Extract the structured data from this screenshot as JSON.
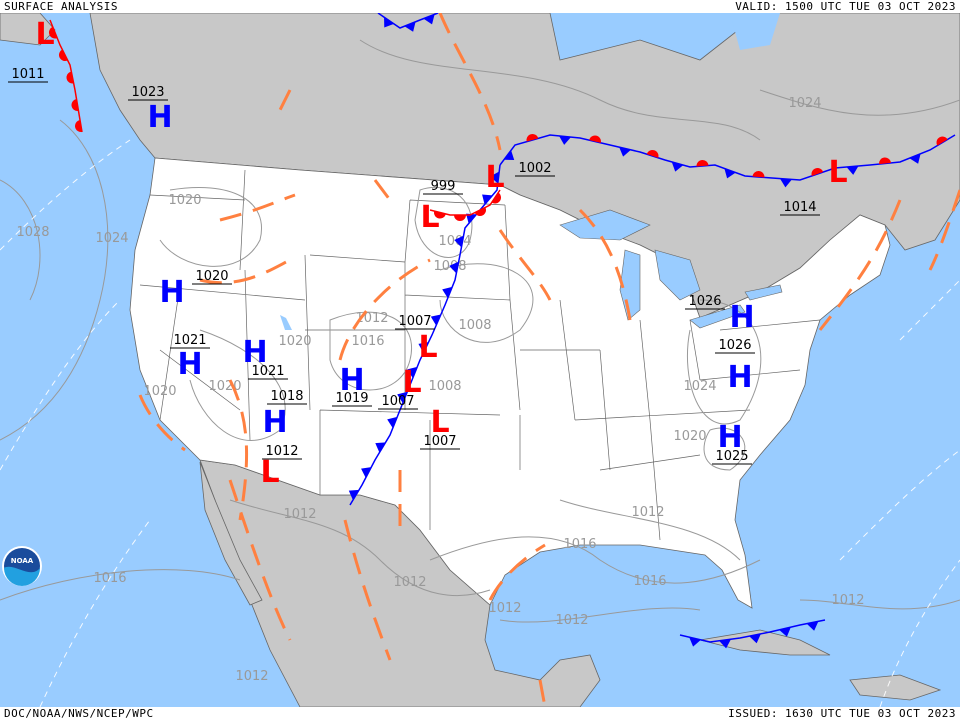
{
  "header": {
    "title": "SURFACE ANALYSIS",
    "valid": "VALID: 1500 UTC TUE 03 OCT 2023"
  },
  "footer": {
    "source": "DOC/NOAA/NWS/NCEP/WPC",
    "issued": "ISSUED: 1630 UTC TUE 03 OCT 2023"
  },
  "logo": {
    "text": "NOAA"
  },
  "colors": {
    "ocean": "#99ccff",
    "land_foreign": "#c8c8c8",
    "land_us": "#ffffff",
    "high": "#0000ff",
    "low": "#ff0000",
    "cold_front": "#0000ff",
    "warm_front": "#ff0000",
    "trough": "#ff8040",
    "isobar": "#999999"
  },
  "pressure_centers": [
    {
      "type": "L",
      "pressure": "1011"
    },
    {
      "type": "H",
      "pressure": "1023"
    },
    {
      "type": "L",
      "pressure": "1002"
    },
    {
      "type": "L",
      "pressure": "999"
    },
    {
      "type": "L",
      "pressure": "1014"
    },
    {
      "type": "L",
      "pressure": "1007"
    },
    {
      "type": "H",
      "pressure": "1020"
    },
    {
      "type": "H",
      "pressure": "1021"
    },
    {
      "type": "H",
      "pressure": "1021"
    },
    {
      "type": "L",
      "pressure": "1007"
    },
    {
      "type": "L",
      "pressure": "1007"
    },
    {
      "type": "H",
      "pressure": "1019"
    },
    {
      "type": "H",
      "pressure": "1018"
    },
    {
      "type": "L",
      "pressure": "1012"
    },
    {
      "type": "H",
      "pressure": "1026"
    },
    {
      "type": "H",
      "pressure": "1026"
    },
    {
      "type": "H",
      "pressure": "1025"
    }
  ],
  "isobar_labels": [
    "1020",
    "1020",
    "1028",
    "1024",
    "1020",
    "1020",
    "1012",
    "1016",
    "1008",
    "1008",
    "1008",
    "1004",
    "1024",
    "1024",
    "1020",
    "1016",
    "1016",
    "1012",
    "1012",
    "1012",
    "1012",
    "1012",
    "1016",
    "1012",
    "1012"
  ]
}
